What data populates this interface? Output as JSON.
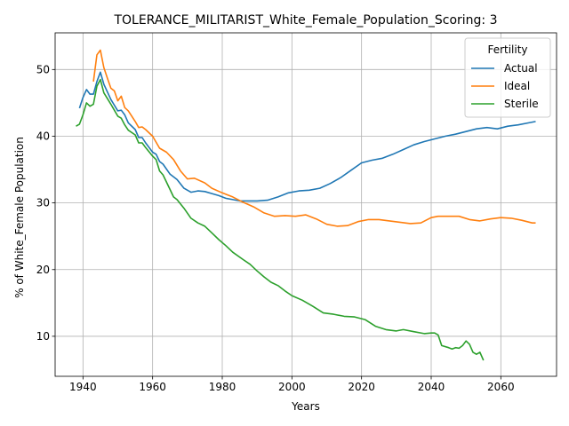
{
  "chart_data": {
    "type": "line",
    "title": "TOLERANCE_MILITARIST_White_Female_Population_Scoring: 3",
    "xlabel": "Years",
    "ylabel": "% of White_Female Population",
    "xlim": [
      1932,
      2076
    ],
    "ylim": [
      4,
      55.5
    ],
    "xticks": [
      1940,
      1960,
      1980,
      2000,
      2020,
      2040,
      2060
    ],
    "yticks": [
      10,
      20,
      30,
      40,
      50
    ],
    "grid": true,
    "legend": {
      "title": "Fertility",
      "placement": "top-right"
    },
    "series": [
      {
        "name": "Actual",
        "color": "#1f77b4",
        "x": [
          1939,
          1940,
          1941,
          1942,
          1943,
          1944,
          1945,
          1946,
          1948,
          1950,
          1951,
          1952,
          1953,
          1955,
          1956,
          1957,
          1958,
          1959,
          1960,
          1961,
          1962,
          1963,
          1965,
          1967,
          1969,
          1971,
          1973,
          1975,
          1977,
          1979,
          1981,
          1983,
          1985,
          1987,
          1990,
          1993,
          1996,
          1999,
          2002,
          2005,
          2008,
          2011,
          2014,
          2017,
          2020,
          2023,
          2026,
          2029,
          2032,
          2035,
          2038,
          2041,
          2044,
          2047,
          2050,
          2053,
          2056,
          2059,
          2062,
          2065,
          2068,
          2070
        ],
        "values": [
          44.2,
          45.8,
          47.0,
          46.3,
          46.3,
          48.2,
          49.6,
          47.8,
          45.5,
          43.8,
          43.9,
          43.2,
          42.0,
          41.0,
          39.8,
          39.8,
          39.0,
          38.3,
          37.6,
          37.3,
          36.2,
          35.8,
          34.3,
          33.5,
          32.2,
          31.6,
          31.8,
          31.7,
          31.4,
          31.1,
          30.7,
          30.5,
          30.3,
          30.3,
          30.3,
          30.4,
          30.9,
          31.5,
          31.8,
          31.9,
          32.2,
          32.9,
          33.8,
          34.9,
          36.0,
          36.4,
          36.7,
          37.3,
          38.0,
          38.7,
          39.2,
          39.6,
          40.0,
          40.3,
          40.7,
          41.1,
          41.3,
          41.1,
          41.5,
          41.7,
          42.0,
          42.2
        ]
      },
      {
        "name": "Ideal",
        "color": "#ff7f0e",
        "x": [
          1943,
          1944,
          1945,
          1946,
          1947,
          1948,
          1949,
          1950,
          1951,
          1952,
          1953,
          1955,
          1956,
          1957,
          1958,
          1960,
          1962,
          1964,
          1966,
          1968,
          1970,
          1972,
          1975,
          1977,
          1980,
          1983,
          1986,
          1989,
          1992,
          1995,
          1998,
          2001,
          2004,
          2007,
          2010,
          2013,
          2016,
          2019,
          2022,
          2025,
          2028,
          2031,
          2034,
          2037,
          2040,
          2042,
          2045,
          2048,
          2051,
          2054,
          2057,
          2060,
          2063,
          2066,
          2069,
          2070
        ],
        "values": [
          48.2,
          52.2,
          52.9,
          50.3,
          48.7,
          47.2,
          46.8,
          45.3,
          46.0,
          44.3,
          43.8,
          42.2,
          41.3,
          41.4,
          41.0,
          40.0,
          38.2,
          37.6,
          36.5,
          34.8,
          33.6,
          33.7,
          33.0,
          32.2,
          31.5,
          30.9,
          30.1,
          29.4,
          28.5,
          28.0,
          28.1,
          28.0,
          28.2,
          27.6,
          26.8,
          26.5,
          26.6,
          27.2,
          27.5,
          27.5,
          27.3,
          27.1,
          26.9,
          27.0,
          27.8,
          28.0,
          28.0,
          28.0,
          27.5,
          27.3,
          27.6,
          27.8,
          27.7,
          27.4,
          27.0,
          27.0
        ]
      },
      {
        "name": "Sterile",
        "color": "#2ca02c",
        "x": [
          1938,
          1939,
          1940,
          1941,
          1942,
          1943,
          1944,
          1945,
          1946,
          1948,
          1950,
          1951,
          1952,
          1953,
          1955,
          1956,
          1957,
          1958,
          1960,
          1961,
          1962,
          1963,
          1965,
          1966,
          1967,
          1969,
          1971,
          1973,
          1975,
          1977,
          1979,
          1981,
          1983,
          1986,
          1988,
          1990,
          1992,
          1994,
          1996,
          1998,
          2000,
          2003,
          2006,
          2009,
          2012,
          2015,
          2018,
          2021,
          2024,
          2027,
          2030,
          2032,
          2035,
          2038,
          2040,
          2041,
          2042,
          2043,
          2045,
          2046,
          2047,
          2048,
          2049,
          2050,
          2051,
          2052,
          2053,
          2054,
          2055
        ],
        "values": [
          41.5,
          41.8,
          43.2,
          45.0,
          44.5,
          44.8,
          47.5,
          48.5,
          46.5,
          44.8,
          43.0,
          42.7,
          41.7,
          40.9,
          40.2,
          39.0,
          39.0,
          38.3,
          37.0,
          36.5,
          34.8,
          34.2,
          32.0,
          30.9,
          30.5,
          29.2,
          27.7,
          27.0,
          26.5,
          25.5,
          24.5,
          23.6,
          22.6,
          21.5,
          20.8,
          19.8,
          18.9,
          18.1,
          17.6,
          16.8,
          16.1,
          15.4,
          14.5,
          13.5,
          13.3,
          13.0,
          12.9,
          12.5,
          11.5,
          11.0,
          10.8,
          11.0,
          10.7,
          10.4,
          10.5,
          10.5,
          10.2,
          8.6,
          8.3,
          8.1,
          8.3,
          8.2,
          8.6,
          9.3,
          8.8,
          7.6,
          7.3,
          7.6,
          6.4
        ]
      }
    ]
  }
}
